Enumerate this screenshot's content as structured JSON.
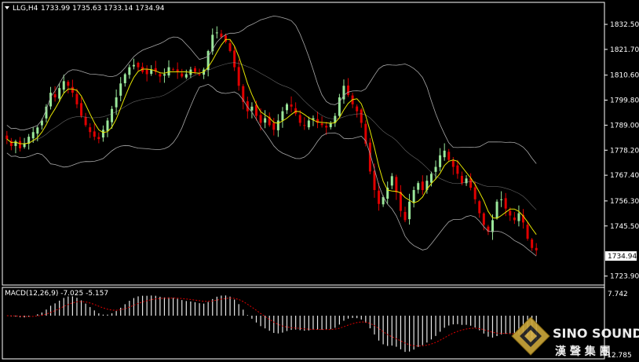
{
  "header": {
    "triangle_icon": "triangle-down-icon",
    "symbol_text": "LLG,H4",
    "ohlc_text": "1733.99 1735.63 1733.14 1734.94"
  },
  "macd": {
    "label": "MACD(12,26,9) -7.025 -5.157",
    "top_label": "7.742",
    "bottom_label": "-12.785"
  },
  "price_panel": {
    "current_price_label": "1734.94"
  },
  "watermark": {
    "brand": "SINO SOUND",
    "brand_cn": "漢 聲 集 團",
    "logo_icon": "diamond-logo-icon"
  },
  "colors": {
    "background": "#000000",
    "bull_candle": "#9ae79a",
    "bear_candle": "#e00000",
    "ma_line": "#e6e600",
    "bands": "#a8a8a8",
    "macd_hist": "#e8e8e8",
    "macd_signal": "#e00000",
    "axis_text": "#ffffff"
  },
  "chart_data": {
    "type": "candlestick",
    "y_ticks": [
      "1832.50",
      "1821.70",
      "1810.60",
      "1799.80",
      "1789.00",
      "1778.20",
      "1767.40",
      "1756.30",
      "1745.50",
      "1723.90"
    ],
    "ylim": [
      1720.0,
      1842.0
    ],
    "macd_ylim": [
      -12.785,
      7.742
    ],
    "close": [
      1783,
      1780,
      1782,
      1779,
      1781,
      1784,
      1786,
      1788,
      1791,
      1797,
      1803,
      1801,
      1805,
      1808,
      1806,
      1803,
      1798,
      1793,
      1789,
      1786,
      1784,
      1783,
      1787,
      1791,
      1796,
      1801,
      1807,
      1811,
      1814,
      1815,
      1814,
      1812,
      1811,
      1813,
      1812,
      1810,
      1811,
      1814,
      1813,
      1812,
      1810,
      1811,
      1813,
      1812,
      1811,
      1813,
      1821,
      1828,
      1829,
      1827,
      1825,
      1821,
      1814,
      1806,
      1799,
      1795,
      1797,
      1793,
      1790,
      1792,
      1789,
      1787,
      1791,
      1795,
      1798,
      1797,
      1794,
      1790,
      1789,
      1791,
      1792,
      1790,
      1789,
      1788,
      1790,
      1793,
      1801,
      1806,
      1802,
      1798,
      1795,
      1790,
      1781,
      1769,
      1761,
      1755,
      1758,
      1762,
      1767,
      1760,
      1752,
      1748,
      1756,
      1761,
      1764,
      1761,
      1765,
      1768,
      1771,
      1776,
      1778,
      1774,
      1771,
      1768,
      1764,
      1766,
      1762,
      1757,
      1751,
      1746,
      1743,
      1748,
      1756,
      1757,
      1753,
      1750,
      1748,
      1751,
      1747,
      1740,
      1736,
      1735
    ]
  }
}
